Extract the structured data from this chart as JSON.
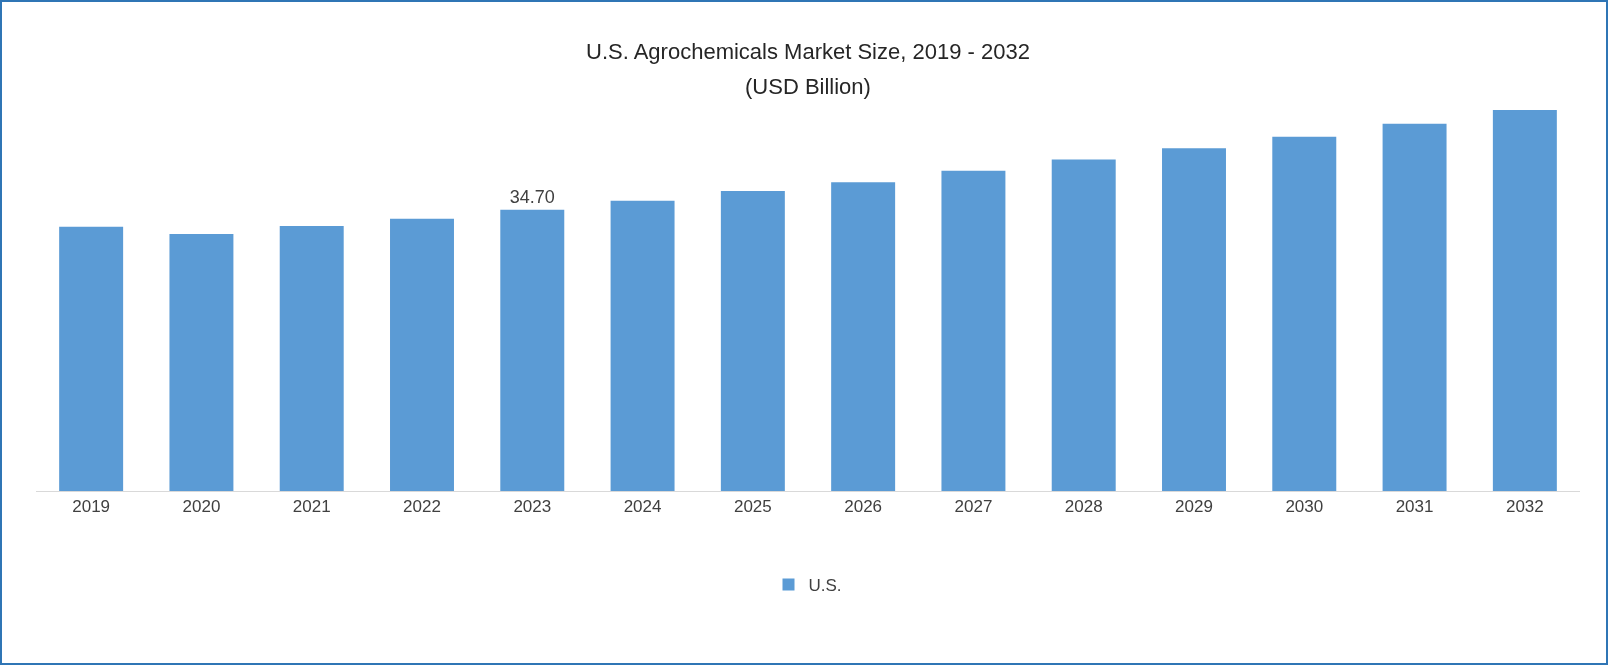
{
  "chart_data": {
    "type": "bar",
    "title": "U.S. Agrochemicals Market Size, 2019 - 2032",
    "subtitle": "(USD Billion)",
    "categories": [
      "2019",
      "2020",
      "2021",
      "2022",
      "2023",
      "2024",
      "2025",
      "2026",
      "2027",
      "2028",
      "2029",
      "2030",
      "2031",
      "2032"
    ],
    "series": [
      {
        "name": "U.S.",
        "color": "#5b9bd5",
        "values": [
          32.6,
          31.7,
          32.7,
          33.6,
          34.7,
          35.8,
          37.0,
          38.1,
          39.5,
          40.9,
          42.3,
          43.7,
          45.3,
          47.0
        ],
        "value_labels": [
          null,
          null,
          null,
          null,
          "34.70",
          null,
          null,
          null,
          null,
          null,
          null,
          null,
          null,
          null
        ]
      }
    ],
    "tick_labels": "x",
    "legend": "bottom"
  }
}
